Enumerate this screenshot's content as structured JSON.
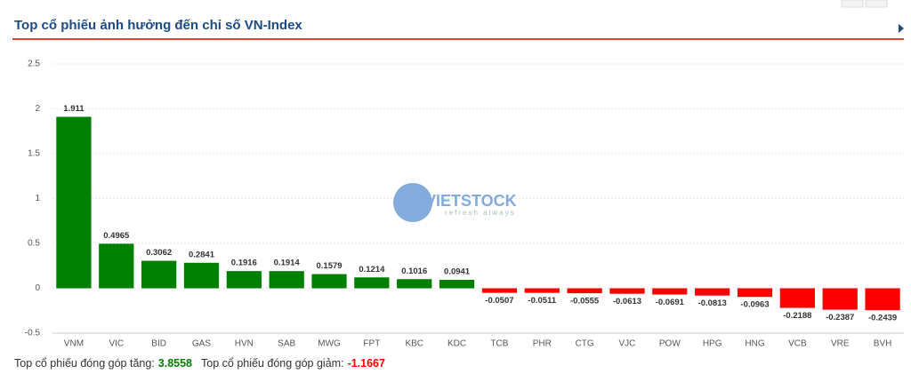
{
  "chart_data": {
    "type": "bar",
    "title": "Top cổ phiếu ảnh hưởng đến chỉ số VN-Index",
    "categories": [
      "VNM",
      "VIC",
      "BID",
      "GAS",
      "HVN",
      "SAB",
      "MWG",
      "FPT",
      "KBC",
      "KDC",
      "TCB",
      "PHR",
      "CTG",
      "VJC",
      "POW",
      "HPG",
      "HNG",
      "VCB",
      "VRE",
      "BVH"
    ],
    "values": [
      1.911,
      0.4965,
      0.3062,
      0.2841,
      0.1916,
      0.1914,
      0.1579,
      0.1214,
      0.1016,
      0.0941,
      -0.0507,
      -0.0511,
      -0.0555,
      -0.0613,
      -0.0691,
      -0.0813,
      -0.0963,
      -0.2188,
      -0.2387,
      -0.2439
    ],
    "color_positive": "#008000",
    "color_negative": "#ff0000",
    "ylim": [
      -0.5,
      2.5
    ],
    "yticks": [
      -0.5,
      0,
      0.5,
      1,
      1.5,
      2,
      2.5
    ],
    "grid": true,
    "watermark": {
      "brand": "VIETSTOCK",
      "tagline": "refresh always"
    },
    "summary": [
      {
        "label": "Top cổ phiếu đóng góp tăng:",
        "value": 3.8558,
        "color": "#008000"
      },
      {
        "label": "Top cổ phiếu đóng góp giảm:",
        "value": -1.1667,
        "color": "#ff0000"
      }
    ]
  }
}
